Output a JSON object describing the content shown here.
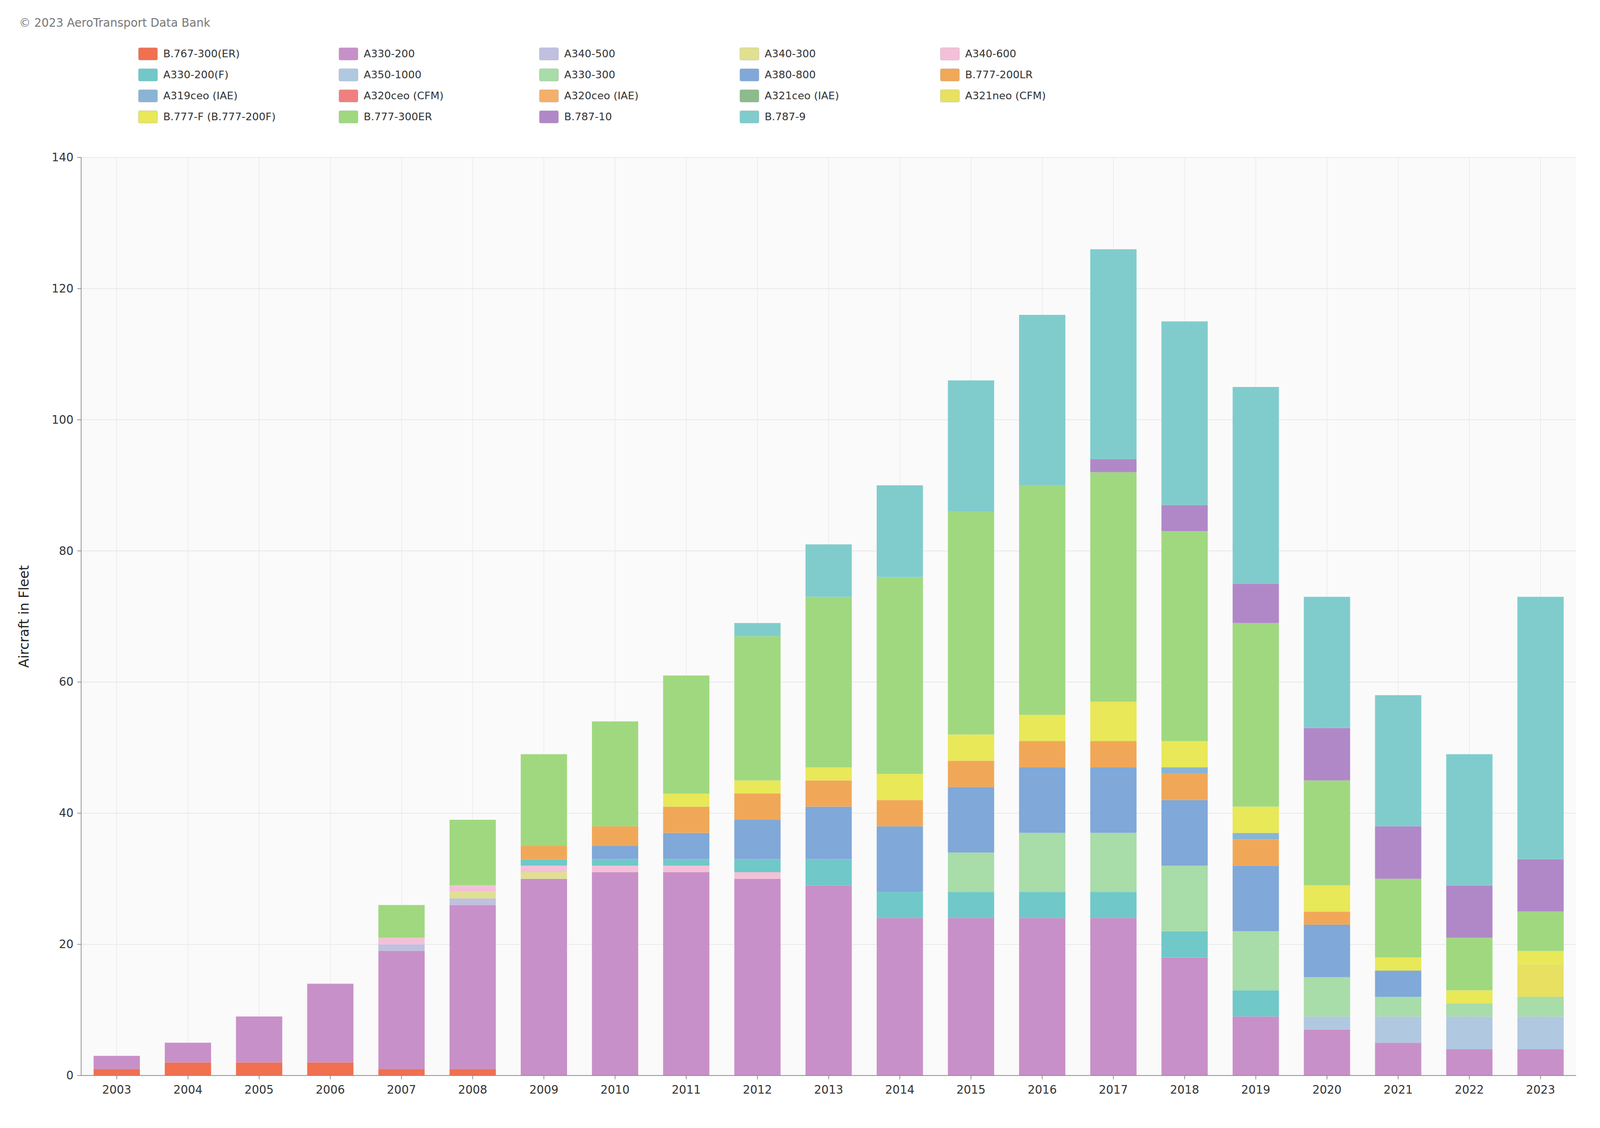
{
  "chart_data": {
    "type": "bar",
    "stacked": true,
    "grid": true,
    "legend": "top",
    "ylabel": "Aircraft in Fleet",
    "annotations": [
      "© 2023 AeroTransport Data Bank"
    ],
    "categories": [
      2003,
      2004,
      2005,
      2006,
      2007,
      2008,
      2009,
      2010,
      2011,
      2012,
      2013,
      2014,
      2015,
      2016,
      2017,
      2018,
      2019,
      2020,
      2021,
      2022,
      2023
    ],
    "ylim": [
      0,
      140
    ],
    "yticks": [
      0,
      20,
      40,
      60,
      80,
      100,
      120,
      140
    ],
    "series": [
      {
        "name": "B.767-300(ER)",
        "color": "#f07050",
        "values": [
          1,
          2,
          2,
          2,
          1,
          1,
          0,
          0,
          0,
          0,
          0,
          0,
          0,
          0,
          0,
          0,
          0,
          0,
          0,
          0,
          0
        ]
      },
      {
        "name": "A330-200",
        "color": "#c890c8",
        "values": [
          2,
          3,
          7,
          12,
          18,
          25,
          30,
          31,
          31,
          30,
          29,
          24,
          24,
          24,
          24,
          18,
          9,
          7,
          5,
          4,
          4
        ]
      },
      {
        "name": "A340-500",
        "color": "#c0c0e0",
        "values": [
          0,
          0,
          0,
          0,
          1,
          1,
          0,
          0,
          0,
          0,
          0,
          0,
          0,
          0,
          0,
          0,
          0,
          0,
          0,
          0,
          0
        ]
      },
      {
        "name": "A340-300",
        "color": "#e0e090",
        "values": [
          0,
          0,
          0,
          0,
          0,
          1,
          1,
          0,
          0,
          0,
          0,
          0,
          0,
          0,
          0,
          0,
          0,
          0,
          0,
          0,
          0
        ]
      },
      {
        "name": "A340-600",
        "color": "#f4c0d8",
        "values": [
          0,
          0,
          0,
          0,
          1,
          1,
          1,
          1,
          1,
          1,
          0,
          0,
          0,
          0,
          0,
          0,
          0,
          0,
          0,
          0,
          0
        ]
      },
      {
        "name": "A330-200(F)",
        "color": "#70c8c8",
        "values": [
          0,
          0,
          0,
          0,
          0,
          0,
          1,
          1,
          1,
          2,
          4,
          4,
          4,
          4,
          4,
          4,
          4,
          0,
          0,
          0,
          0
        ]
      },
      {
        "name": "A350-1000",
        "color": "#b0c8e0",
        "values": [
          0,
          0,
          0,
          0,
          0,
          0,
          0,
          0,
          0,
          0,
          0,
          0,
          0,
          0,
          0,
          0,
          0,
          2,
          4,
          5,
          5
        ]
      },
      {
        "name": "A330-300",
        "color": "#a8dca8",
        "values": [
          0,
          0,
          0,
          0,
          0,
          0,
          0,
          0,
          0,
          0,
          0,
          0,
          6,
          9,
          9,
          10,
          9,
          6,
          3,
          2,
          3
        ]
      },
      {
        "name": "A380-800",
        "color": "#80a8d8",
        "values": [
          0,
          0,
          0,
          0,
          0,
          0,
          0,
          2,
          4,
          6,
          8,
          10,
          10,
          10,
          10,
          10,
          10,
          8,
          4,
          0,
          0
        ]
      },
      {
        "name": "B.777-200LR",
        "color": "#f0a858",
        "values": [
          0,
          0,
          0,
          0,
          0,
          0,
          2,
          3,
          4,
          4,
          4,
          4,
          4,
          4,
          4,
          4,
          4,
          2,
          0,
          0,
          0
        ]
      },
      {
        "name": "A319ceo (IAE)",
        "color": "#8ab4d4",
        "values": [
          0,
          0,
          0,
          0,
          0,
          0,
          0,
          0,
          0,
          0,
          0,
          0,
          0,
          0,
          0,
          1,
          1,
          0,
          0,
          0,
          0
        ]
      },
      {
        "name": "A320ceo (CFM)",
        "color": "#f08080",
        "values": [
          0,
          0,
          0,
          0,
          0,
          0,
          0,
          0,
          0,
          0,
          0,
          0,
          0,
          0,
          0,
          0,
          0,
          0,
          0,
          0,
          0
        ]
      },
      {
        "name": "A320ceo (IAE)",
        "color": "#f4b06a",
        "values": [
          0,
          0,
          0,
          0,
          0,
          0,
          0,
          0,
          0,
          0,
          0,
          0,
          0,
          0,
          0,
          0,
          0,
          0,
          0,
          0,
          0
        ]
      },
      {
        "name": "A321ceo (IAE)",
        "color": "#8cbb8c",
        "values": [
          0,
          0,
          0,
          0,
          0,
          0,
          0,
          0,
          0,
          0,
          0,
          0,
          0,
          0,
          0,
          0,
          0,
          0,
          0,
          0,
          0
        ]
      },
      {
        "name": "A321neo (CFM)",
        "color": "#e8e060",
        "values": [
          0,
          0,
          0,
          0,
          0,
          0,
          0,
          0,
          0,
          0,
          0,
          0,
          0,
          0,
          0,
          0,
          0,
          0,
          0,
          0,
          5
        ]
      },
      {
        "name": "B.777-F (B.777-200F)",
        "color": "#e8e858",
        "values": [
          0,
          0,
          0,
          0,
          0,
          0,
          0,
          0,
          2,
          2,
          2,
          4,
          4,
          4,
          6,
          4,
          4,
          4,
          2,
          2,
          2
        ]
      },
      {
        "name": "B.777-300ER",
        "color": "#a0d880",
        "values": [
          0,
          0,
          0,
          0,
          5,
          10,
          14,
          16,
          18,
          22,
          26,
          30,
          34,
          35,
          35,
          32,
          28,
          16,
          12,
          8,
          6
        ]
      },
      {
        "name": "B.787-10",
        "color": "#b088c8",
        "values": [
          0,
          0,
          0,
          0,
          0,
          0,
          0,
          0,
          0,
          0,
          0,
          0,
          0,
          0,
          2,
          4,
          6,
          8,
          8,
          8,
          8
        ]
      },
      {
        "name": "B.787-9",
        "color": "#80cccc",
        "values": [
          0,
          0,
          0,
          0,
          0,
          0,
          0,
          0,
          0,
          2,
          8,
          14,
          20,
          26,
          32,
          28,
          30,
          20,
          20,
          20,
          40
        ]
      }
    ]
  }
}
